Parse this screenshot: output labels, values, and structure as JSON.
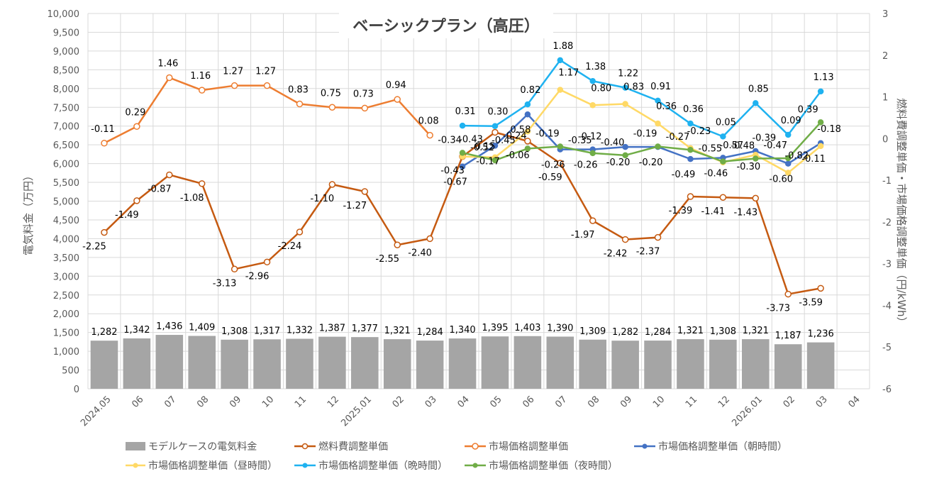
{
  "chart_data": {
    "type": "bar-line-combo",
    "title": "ベーシックプラン（高圧）",
    "ylabel_left": "電気料金（万円）",
    "ylabel_right": "燃料費調整単価・市場価格調整単価（円/kWh）",
    "ylim_left": [
      0,
      10000
    ],
    "ylim_right": [
      -6,
      3
    ],
    "yticks_left": [
      "0",
      "500",
      "1,000",
      "1,500",
      "2,000",
      "2,500",
      "3,000",
      "3,500",
      "4,000",
      "4,500",
      "5,000",
      "5,500",
      "6,000",
      "6,500",
      "7,000",
      "7,500",
      "8,000",
      "8,500",
      "9,000",
      "9,500",
      "10,000"
    ],
    "yticks_right": [
      "-6",
      "-5",
      "-4",
      "-3",
      "-2",
      "-1",
      "0",
      "1",
      "2",
      "3"
    ],
    "categories": [
      "2024.05",
      "06",
      "07",
      "08",
      "09",
      "10",
      "11",
      "12",
      "2025.01",
      "02",
      "03",
      "04",
      "05",
      "06",
      "07",
      "08",
      "09",
      "10",
      "11",
      "12",
      "2026.01",
      "02",
      "03",
      "04"
    ],
    "bar_series": {
      "name": "モデルケースの電気料金",
      "values": [
        1282,
        1342,
        1436,
        1409,
        1308,
        1317,
        1332,
        1387,
        1377,
        1321,
        1284,
        1340,
        1395,
        1403,
        1390,
        1309,
        1282,
        1284,
        1321,
        1308,
        1321,
        1187,
        1236,
        null
      ],
      "labels": [
        "1,282",
        "1,342",
        "1,436",
        "1,409",
        "1,308",
        "1,317",
        "1,332",
        "1,387",
        "1,377",
        "1,321",
        "1,284",
        "1,340",
        "1,395",
        "1,403",
        "1,390",
        "1,309",
        "1,282",
        "1,284",
        "1,321",
        "1,308",
        "1,321",
        "1,187",
        "1,236",
        ""
      ]
    },
    "line_series": [
      {
        "name": "燃料費調整単価",
        "values": [
          -2.25,
          -1.49,
          -0.87,
          -1.08,
          -3.13,
          -2.96,
          -2.24,
          -1.1,
          -1.27,
          -2.55,
          -2.4,
          -0.43,
          0.15,
          -0.06,
          -0.59,
          -1.97,
          -2.42,
          -2.37,
          -1.39,
          -1.41,
          -1.43,
          -3.73,
          -3.59,
          null
        ],
        "labels": [
          "-2.25",
          "-1.49",
          "-0.87",
          "-1.08",
          "-3.13",
          "-2.96",
          "-2.24",
          "-1.10",
          "-1.27",
          "-2.55",
          "-2.40",
          "-0.43",
          "0.15",
          "-0.06",
          "-0.59",
          "-1.97",
          "-2.42",
          "-2.37",
          "-1.39",
          "-1.41",
          "-1.43",
          "-3.73",
          "-3.59",
          ""
        ]
      },
      {
        "name": "市場価格調整単価",
        "values": [
          -0.11,
          0.29,
          1.46,
          1.16,
          1.27,
          1.27,
          0.83,
          0.75,
          0.73,
          0.94,
          0.08,
          null,
          null,
          null,
          null,
          null,
          null,
          null,
          null,
          null,
          null,
          null,
          null,
          null
        ],
        "labels": [
          "-0.11",
          "0.29",
          "1.46",
          "1.16",
          "1.27",
          "1.27",
          "0.83",
          "0.75",
          "0.73",
          "0.94",
          "0.08",
          "",
          "",
          "",
          "",
          "",
          "",
          "",
          "",
          "",
          "",
          "",
          "",
          ""
        ]
      },
      {
        "name": "市場価格調整単価（朝時間）",
        "values": [
          null,
          null,
          null,
          null,
          null,
          null,
          null,
          null,
          null,
          null,
          null,
          -0.67,
          -0.17,
          0.58,
          -0.26,
          -0.26,
          -0.2,
          -0.2,
          -0.49,
          -0.46,
          -0.3,
          -0.6,
          -0.11,
          null
        ],
        "labels": [
          "",
          "",
          "",
          "",
          "",
          "",
          "",
          "",
          "",
          "",
          "",
          "-0.67",
          "-0.17",
          "0.58",
          "-0.26",
          "-0.26",
          "-0.20",
          "-0.20",
          "-0.49",
          "-0.46",
          "-0.30",
          "-0.60",
          "-0.11",
          ""
        ]
      },
      {
        "name": "市場価格調整単価（昼時間）",
        "values": [
          null,
          null,
          null,
          null,
          null,
          null,
          null,
          null,
          null,
          null,
          null,
          -0.43,
          -0.45,
          0.17,
          1.17,
          0.8,
          0.83,
          0.36,
          -0.23,
          -0.57,
          -0.39,
          -0.82,
          -0.18,
          null
        ],
        "labels": [
          "",
          "",
          "",
          "",
          "",
          "",
          "",
          "",
          "",
          "",
          "",
          "-0.43",
          "-0.45",
          "",
          "1.17",
          "0.80",
          "0.83",
          "0.36",
          "-0.23",
          "-0.57",
          "-0.39",
          "-0.82",
          "-0.18",
          ""
        ]
      },
      {
        "name": "市場価格調整単価（晩時間）",
        "values": [
          null,
          null,
          null,
          null,
          null,
          null,
          null,
          null,
          null,
          null,
          null,
          0.31,
          0.3,
          0.82,
          1.88,
          1.38,
          1.22,
          0.91,
          0.36,
          0.05,
          0.85,
          0.09,
          1.13,
          null
        ],
        "labels": [
          "",
          "",
          "",
          "",
          "",
          "",
          "",
          "",
          "",
          "",
          "",
          "0.31",
          "0.30",
          "0.82",
          "1.88",
          "1.38",
          "1.22",
          "0.91",
          "0.36",
          "0.05",
          "0.85",
          "0.09",
          "1.13",
          ""
        ]
      },
      {
        "name": "市場価格調整単価（夜時間）",
        "values": [
          null,
          null,
          null,
          null,
          null,
          null,
          null,
          null,
          null,
          null,
          null,
          -0.34,
          -0.52,
          -0.24,
          -0.19,
          -0.35,
          -0.4,
          -0.19,
          -0.27,
          -0.55,
          -0.48,
          -0.47,
          0.39,
          null
        ],
        "labels": [
          "",
          "",
          "",
          "",
          "",
          "",
          "",
          "",
          "",
          "",
          "",
          "-0.34",
          "-0.52",
          "-0.24",
          "-0.19",
          "-0.35",
          "-0.40",
          "-0.19",
          "-0.27",
          "-0.55",
          "-0.48",
          "-0.47",
          "0.39",
          ""
        ]
      }
    ],
    "extra_labels": [
      "-0.12"
    ],
    "colors": {
      "bar": "#a5a5a5",
      "fuel": "#c55a11",
      "market": "#ed7d31",
      "morning": "#4472c4",
      "day": "#ffd966",
      "evening": "#1fb2f0",
      "night": "#70ad47",
      "grid": "#d9d9d9",
      "text": "#000000",
      "axis_text": "#595959"
    },
    "legend_position": "bottom"
  }
}
